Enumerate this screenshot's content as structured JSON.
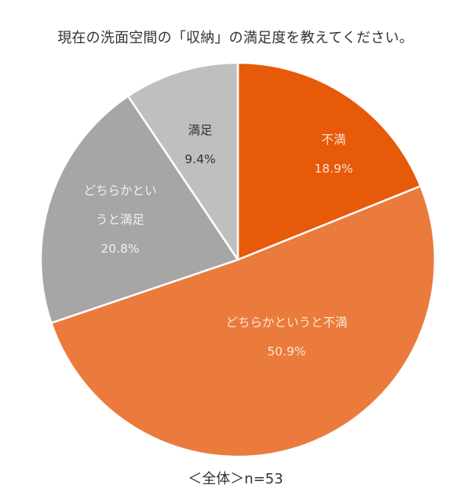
{
  "chart_data": {
    "type": "pie",
    "title": "現在の洗面空間の「収納」の満足度を教えてください。",
    "categories": [
      "不満",
      "どちらかというと不満",
      "どちらかというと満足",
      "満足"
    ],
    "values": [
      18.9,
      50.9,
      20.8,
      9.4
    ],
    "unit": "%",
    "start_angle": "12 o'clock",
    "direction": "clockwise",
    "colors": [
      "#E65A0A",
      "#EB7B3C",
      "#A6A6A6",
      "#BFBFBF"
    ],
    "annotation": "＜全体＞n=53",
    "legend": "none (data labels inside slices)"
  },
  "labels": {
    "s0": {
      "name": "不満",
      "pct": "18.9%"
    },
    "s1": {
      "name": "どちらかというと不満",
      "pct": "50.9%"
    },
    "s2": {
      "line1": "どちらかとい",
      "line2": "うと満足",
      "pct": "20.8%"
    },
    "s3": {
      "name": "満足",
      "pct": "9.4%"
    }
  },
  "footer": "＜全体＞n=53"
}
